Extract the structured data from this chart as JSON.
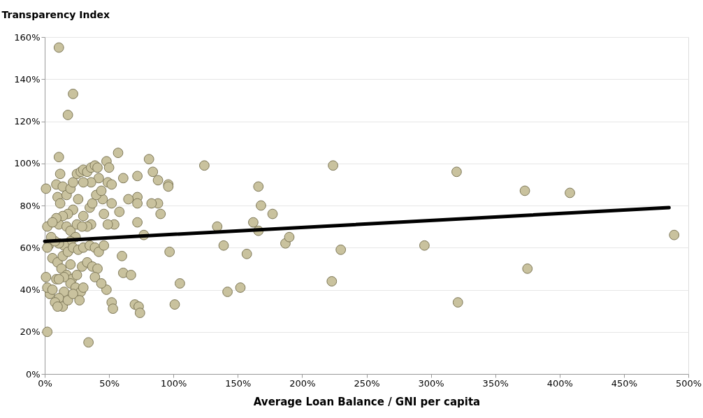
{
  "chart_data": {
    "type": "scatter",
    "xlabel": "Average Loan Balance / GNI per capita",
    "ylabel": "Transparency Index",
    "xlim": [
      0,
      500
    ],
    "ylim": [
      0,
      160
    ],
    "xticks": [
      {
        "value": 0,
        "label": "0%"
      },
      {
        "value": 50,
        "label": "50%"
      },
      {
        "value": 100,
        "label": "100%"
      },
      {
        "value": 150,
        "label": "150%"
      },
      {
        "value": 200,
        "label": "200%"
      },
      {
        "value": 250,
        "label": "250%"
      },
      {
        "value": 300,
        "label": "300%"
      },
      {
        "value": 350,
        "label": "350%"
      },
      {
        "value": 400,
        "label": "400%"
      },
      {
        "value": 450,
        "label": "450%"
      },
      {
        "value": 500,
        "label": "500%"
      }
    ],
    "yticks": [
      {
        "value": 0,
        "label": "0%"
      },
      {
        "value": 20,
        "label": "20%"
      },
      {
        "value": 40,
        "label": "40%"
      },
      {
        "value": 60,
        "label": "60%"
      },
      {
        "value": 80,
        "label": "80%"
      },
      {
        "value": 100,
        "label": "100%"
      },
      {
        "value": 120,
        "label": "120%"
      },
      {
        "value": 140,
        "label": "140%"
      },
      {
        "value": 160,
        "label": "160%"
      }
    ],
    "grid": "y",
    "marker": "circle",
    "series": [
      {
        "color": "#c9c29e",
        "x": [
          11,
          22,
          18,
          11,
          124,
          224,
          320,
          373,
          408,
          166,
          168,
          177,
          162,
          134,
          166,
          139,
          187,
          190,
          230,
          295,
          157,
          489,
          375,
          223,
          152,
          142,
          105,
          101,
          321,
          97,
          96,
          96,
          90,
          88,
          88,
          84,
          81,
          83,
          77,
          72,
          72,
          72,
          72,
          57,
          61,
          65,
          58,
          60,
          61,
          67,
          70,
          73,
          74,
          52,
          53,
          48,
          50,
          49,
          52,
          52,
          54,
          46,
          45,
          48,
          49,
          34,
          2,
          3,
          1,
          2,
          9,
          10,
          12,
          12,
          14,
          17,
          20,
          22,
          25,
          28,
          30,
          33,
          36,
          39,
          41,
          42,
          36,
          30,
          26,
          22,
          18,
          14,
          11,
          9,
          6,
          17,
          20,
          25,
          30,
          35,
          37,
          40,
          44,
          36,
          33,
          29,
          24,
          20,
          15,
          11,
          8,
          5,
          2,
          6,
          10,
          14,
          18,
          22,
          26,
          30,
          35,
          39,
          42,
          46,
          13,
          17,
          21,
          25,
          29,
          33,
          37,
          41,
          20,
          24,
          28,
          15,
          11,
          8,
          4,
          2,
          1,
          9,
          14,
          10,
          6,
          18,
          22,
          30,
          39,
          44,
          27,
          20,
          15,
          11
        ],
        "values": [
          155,
          133,
          123,
          103,
          99,
          99,
          96,
          87,
          86,
          89,
          80,
          76,
          72,
          70,
          68,
          61,
          62,
          65,
          59,
          61,
          57,
          66,
          50,
          44,
          41,
          39,
          43,
          33,
          34,
          58,
          90,
          89,
          76,
          81,
          92,
          96,
          102,
          81,
          66,
          94,
          84,
          81,
          72,
          105,
          93,
          83,
          77,
          56,
          48,
          47,
          33,
          32,
          29,
          34,
          31,
          101,
          98,
          91,
          90,
          81,
          71,
          76,
          83,
          40,
          71,
          15,
          20,
          61,
          88,
          70,
          90,
          84,
          81,
          95,
          89,
          85,
          88,
          91,
          95,
          96,
          97,
          96,
          98,
          99,
          98,
          93,
          91,
          91,
          83,
          78,
          76,
          75,
          71,
          74,
          72,
          70,
          68,
          71,
          75,
          79,
          81,
          85,
          87,
          71,
          70,
          70,
          65,
          63,
          61,
          62,
          63,
          65,
          60,
          55,
          53,
          56,
          58,
          60,
          59,
          60,
          61,
          60,
          58,
          61,
          50,
          47,
          45,
          47,
          51,
          53,
          51,
          50,
          43,
          41,
          39,
          39,
          36,
          34,
          38,
          41,
          46,
          45,
          32,
          32,
          40,
          35,
          38,
          41,
          46,
          43,
          35,
          52,
          46,
          45
        ]
      },
      {
        "type": "line",
        "color": "#000000",
        "x": [
          0,
          485
        ],
        "values": [
          63,
          79
        ],
        "line_style": "solid",
        "marker": "none"
      }
    ]
  }
}
